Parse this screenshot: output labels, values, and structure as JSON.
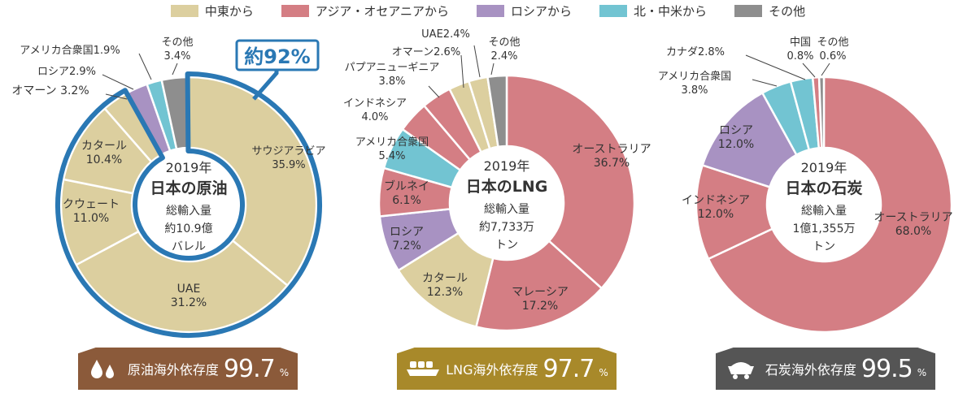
{
  "legend": [
    {
      "label": "中東から",
      "color": "#dccf9f"
    },
    {
      "label": "アジア・オセアニアから",
      "color": "#d47e84"
    },
    {
      "label": "ロシアから",
      "color": "#a892c2"
    },
    {
      "label": "北・中米から",
      "color": "#72c4d2"
    },
    {
      "label": "その他",
      "color": "#8e8e8e"
    }
  ],
  "chart_data": [
    {
      "type": "pie",
      "center_lines": [
        "2019年",
        "日本の原油",
        "総輸入量",
        "約10.9億",
        "バレル"
      ],
      "highlight_label": "約92%",
      "slices": [
        {
          "name": "サウジアラビア",
          "value": 35.9,
          "group": "中東から"
        },
        {
          "name": "UAE",
          "value": 31.2,
          "group": "中東から"
        },
        {
          "name": "クウェート",
          "value": 11.0,
          "group": "中東から"
        },
        {
          "name": "カタール",
          "value": 10.4,
          "group": "中東から"
        },
        {
          "name": "オマーン",
          "value": 3.2,
          "group": "中東から"
        },
        {
          "name": "ロシア",
          "value": 2.9,
          "group": "ロシアから"
        },
        {
          "name": "アメリカ合衆国",
          "value": 1.9,
          "group": "北・中米から"
        },
        {
          "name": "その他",
          "value": 3.4,
          "group": "その他"
        }
      ],
      "labels": [
        {
          "lines": [
            "サウジアラビア",
            "35.9%"
          ]
        },
        {
          "lines": [
            "UAE",
            "31.2%"
          ]
        },
        {
          "lines": [
            "クウェート",
            "11.0%"
          ]
        },
        {
          "lines": [
            "カタール",
            "10.4%"
          ]
        },
        {
          "lines": [
            "オマーン 3.2%"
          ]
        },
        {
          "lines": [
            "ロシア2.9%"
          ]
        },
        {
          "lines": [
            "アメリカ合衆国1.9%"
          ]
        },
        {
          "lines": [
            "その他",
            "3.4%"
          ]
        }
      ],
      "dependency": {
        "label": "原油海外依存度",
        "value": "99.7",
        "unit": "%",
        "color": "#8b5a3a"
      }
    },
    {
      "type": "pie",
      "center_lines": [
        "2019年",
        "日本のLNG",
        "総輸入量",
        "約7,733万",
        "トン"
      ],
      "slices": [
        {
          "name": "オーストラリア",
          "value": 36.7,
          "group": "アジア・オセアニアから"
        },
        {
          "name": "マレーシア",
          "value": 17.2,
          "group": "アジア・オセアニアから"
        },
        {
          "name": "カタール",
          "value": 12.3,
          "group": "中東から"
        },
        {
          "name": "ロシア",
          "value": 7.2,
          "group": "ロシアから"
        },
        {
          "name": "ブルネイ",
          "value": 6.1,
          "group": "アジア・オセアニアから"
        },
        {
          "name": "アメリカ合衆国",
          "value": 5.4,
          "group": "北・中米から"
        },
        {
          "name": "インドネシア",
          "value": 4.0,
          "group": "アジア・オセアニアから"
        },
        {
          "name": "パプアニューギニア",
          "value": 3.8,
          "group": "アジア・オセアニアから"
        },
        {
          "name": "オマーン",
          "value": 2.6,
          "group": "中東から"
        },
        {
          "name": "UAE",
          "value": 2.4,
          "group": "中東から"
        },
        {
          "name": "その他",
          "value": 2.4,
          "group": "その他"
        }
      ],
      "labels": [
        {
          "lines": [
            "オーストラリア",
            "36.7%"
          ]
        },
        {
          "lines": [
            "マレーシア",
            "17.2%"
          ]
        },
        {
          "lines": [
            "カタール",
            "12.3%"
          ]
        },
        {
          "lines": [
            "ロシア",
            "7.2%"
          ]
        },
        {
          "lines": [
            "ブルネイ",
            "6.1%"
          ]
        },
        {
          "lines": [
            "アメリカ合衆国",
            "5.4%"
          ]
        },
        {
          "lines": [
            "インドネシア",
            "4.0%"
          ]
        },
        {
          "lines": [
            "パプアニューギニア",
            "3.8%"
          ]
        },
        {
          "lines": [
            "オマーン2.6%"
          ]
        },
        {
          "lines": [
            "UAE2.4%"
          ]
        },
        {
          "lines": [
            "その他",
            "2.4%"
          ]
        }
      ],
      "dependency": {
        "label": "LNG海外依存度",
        "value": "97.7",
        "unit": "%",
        "color": "#a8892a"
      }
    },
    {
      "type": "pie",
      "center_lines": [
        "2019年",
        "日本の石炭",
        "総輸入量",
        "1億1,355万",
        "トン"
      ],
      "slices": [
        {
          "name": "オーストラリア",
          "value": 68.0,
          "group": "アジア・オセアニアから"
        },
        {
          "name": "インドネシア",
          "value": 12.0,
          "group": "アジア・オセアニアから"
        },
        {
          "name": "ロシア",
          "value": 12.0,
          "group": "ロシアから"
        },
        {
          "name": "アメリカ合衆国",
          "value": 3.8,
          "group": "北・中米から"
        },
        {
          "name": "カナダ",
          "value": 2.8,
          "group": "北・中米から"
        },
        {
          "name": "中国",
          "value": 0.8,
          "group": "アジア・オセアニアから"
        },
        {
          "name": "その他",
          "value": 0.6,
          "group": "その他"
        }
      ],
      "labels": [
        {
          "lines": [
            "オーストラリア",
            "68.0%"
          ]
        },
        {
          "lines": [
            "インドネシア",
            "12.0%"
          ]
        },
        {
          "lines": [
            "ロシア",
            "12.0%"
          ]
        },
        {
          "lines": [
            "アメリカ合衆国",
            "3.8%"
          ]
        },
        {
          "lines": [
            "カナダ2.8%"
          ]
        },
        {
          "lines": [
            "中国",
            "0.8%"
          ]
        },
        {
          "lines": [
            "その他",
            "0.6%"
          ]
        }
      ],
      "dependency": {
        "label": "石炭海外依存度",
        "value": "99.5",
        "unit": "%",
        "color": "#555555"
      }
    }
  ]
}
